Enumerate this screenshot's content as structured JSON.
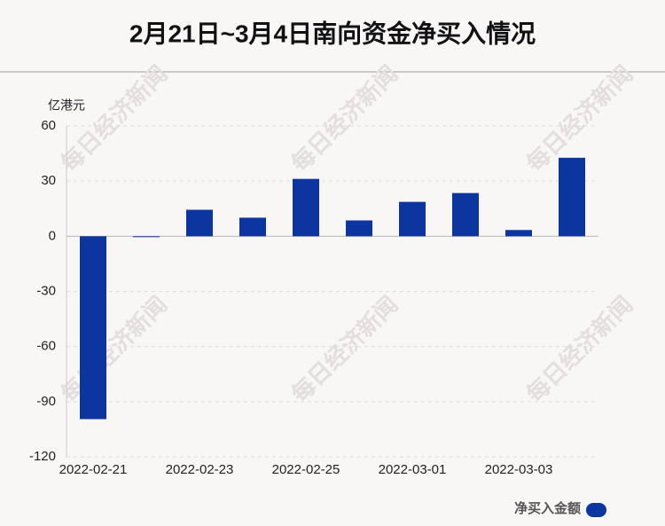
{
  "chart_data": {
    "type": "bar",
    "title": "2月21日~3月4日南向资金净买入情况",
    "y_unit": "亿港元",
    "watermark": "每日经济新闻",
    "categories": [
      "2022-02-21",
      null,
      "2022-02-23",
      null,
      "2022-02-25",
      null,
      "2022-03-01",
      null,
      "2022-03-03",
      null
    ],
    "series": [
      {
        "name": "净买入金额",
        "color": "#0d35a0",
        "values": [
          -99.5,
          -0.3,
          14.4,
          10.1,
          31.2,
          8.6,
          18.7,
          23.5,
          3.4,
          42.7
        ]
      }
    ],
    "ylim": [
      -120,
      60
    ],
    "yticks": [
      -120,
      -90,
      -60,
      -30,
      0,
      30,
      60
    ],
    "grid": true,
    "legend": "bottom-right"
  }
}
